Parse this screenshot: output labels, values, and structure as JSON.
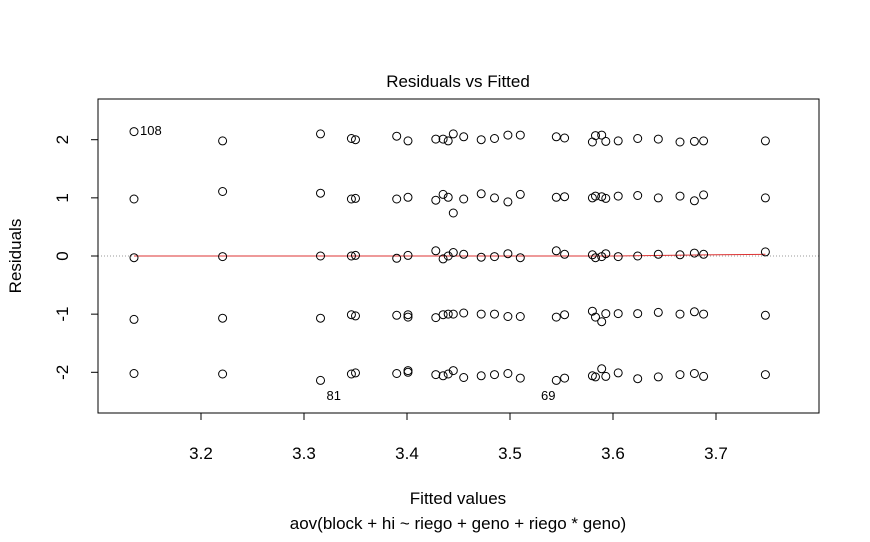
{
  "chart_data": {
    "type": "scatter",
    "title": "Residuals vs Fitted",
    "xlabel": "Fitted values",
    "subtitle": "aov(block + hi ~ riego + geno + riego * geno)",
    "ylabel": "Residuals",
    "xlim": [
      3.1,
      3.8
    ],
    "ylim": [
      -2.7,
      2.7
    ],
    "x_ticks": [
      3.2,
      3.3,
      3.4,
      3.5,
      3.6,
      3.7
    ],
    "x_tick_labels": [
      "3.2",
      "3.3",
      "3.4",
      "3.5",
      "3.6",
      "3.7"
    ],
    "y_ticks": [
      -2,
      -1,
      0,
      1,
      2
    ],
    "y_tick_labels": [
      "-2",
      "-1",
      "0",
      "1",
      "2"
    ],
    "zero_line": 0,
    "point_annotations": [
      {
        "label": "108",
        "x": 3.135,
        "y": 2.14,
        "side": "right"
      },
      {
        "label": "81",
        "x": 3.316,
        "y": -2.14,
        "side": "right"
      },
      {
        "label": "69",
        "x": 3.55,
        "y": -2.14,
        "side": "left"
      }
    ],
    "points": [
      [
        3.135,
        2.14
      ],
      [
        3.135,
        0.98
      ],
      [
        3.135,
        -0.03
      ],
      [
        3.135,
        -1.09
      ],
      [
        3.135,
        -2.02
      ],
      [
        3.221,
        1.98
      ],
      [
        3.221,
        1.11
      ],
      [
        3.221,
        -0.01
      ],
      [
        3.221,
        -1.07
      ],
      [
        3.221,
        -2.03
      ],
      [
        3.316,
        2.1
      ],
      [
        3.316,
        1.08
      ],
      [
        3.316,
        0.0
      ],
      [
        3.316,
        -1.07
      ],
      [
        3.316,
        -2.14
      ],
      [
        3.346,
        2.02
      ],
      [
        3.346,
        0.98
      ],
      [
        3.346,
        0.0
      ],
      [
        3.346,
        -1.01
      ],
      [
        3.346,
        -2.03
      ],
      [
        3.35,
        2.0
      ],
      [
        3.35,
        0.99
      ],
      [
        3.35,
        0.01
      ],
      [
        3.35,
        -1.03
      ],
      [
        3.35,
        -2.01
      ],
      [
        3.39,
        2.06
      ],
      [
        3.39,
        0.98
      ],
      [
        3.39,
        -0.04
      ],
      [
        3.39,
        -1.02
      ],
      [
        3.39,
        -2.02
      ],
      [
        3.401,
        1.98
      ],
      [
        3.401,
        1.01
      ],
      [
        3.401,
        0.01
      ],
      [
        3.401,
        -1.01
      ],
      [
        3.401,
        -2.0
      ],
      [
        3.401,
        -1.05
      ],
      [
        3.401,
        -1.97
      ],
      [
        3.428,
        2.01
      ],
      [
        3.428,
        0.96
      ],
      [
        3.428,
        0.09
      ],
      [
        3.428,
        -1.06
      ],
      [
        3.428,
        -2.04
      ],
      [
        3.435,
        2.01
      ],
      [
        3.435,
        1.06
      ],
      [
        3.435,
        -0.05
      ],
      [
        3.435,
        -1.01
      ],
      [
        3.435,
        -2.06
      ],
      [
        3.44,
        1.98
      ],
      [
        3.44,
        1.01
      ],
      [
        3.44,
        0.0
      ],
      [
        3.44,
        -1.0
      ],
      [
        3.44,
        -2.03
      ],
      [
        3.445,
        2.1
      ],
      [
        3.445,
        0.74
      ],
      [
        3.445,
        0.06
      ],
      [
        3.445,
        -1.0
      ],
      [
        3.445,
        -1.97
      ],
      [
        3.455,
        2.05
      ],
      [
        3.455,
        0.98
      ],
      [
        3.455,
        0.03
      ],
      [
        3.455,
        -0.98
      ],
      [
        3.455,
        -2.09
      ],
      [
        3.472,
        2.0
      ],
      [
        3.472,
        1.07
      ],
      [
        3.472,
        -0.02
      ],
      [
        3.472,
        -1.0
      ],
      [
        3.472,
        -2.06
      ],
      [
        3.485,
        2.02
      ],
      [
        3.485,
        1.0
      ],
      [
        3.485,
        -0.01
      ],
      [
        3.485,
        -1.0
      ],
      [
        3.485,
        -2.04
      ],
      [
        3.498,
        2.08
      ],
      [
        3.498,
        0.93
      ],
      [
        3.498,
        0.04
      ],
      [
        3.498,
        -1.04
      ],
      [
        3.498,
        -2.02
      ],
      [
        3.51,
        2.08
      ],
      [
        3.51,
        1.06
      ],
      [
        3.51,
        -0.03
      ],
      [
        3.51,
        -1.04
      ],
      [
        3.51,
        -2.1
      ],
      [
        3.545,
        2.05
      ],
      [
        3.545,
        1.01
      ],
      [
        3.545,
        0.09
      ],
      [
        3.545,
        -1.05
      ],
      [
        3.545,
        -2.14
      ],
      [
        3.553,
        2.03
      ],
      [
        3.553,
        1.02
      ],
      [
        3.553,
        0.03
      ],
      [
        3.553,
        -1.01
      ],
      [
        3.553,
        -2.1
      ],
      [
        3.58,
        1.96
      ],
      [
        3.58,
        1.0
      ],
      [
        3.58,
        0.02
      ],
      [
        3.58,
        -0.95
      ],
      [
        3.58,
        -2.06
      ],
      [
        3.583,
        2.07
      ],
      [
        3.583,
        1.03
      ],
      [
        3.583,
        -0.03
      ],
      [
        3.583,
        -1.05
      ],
      [
        3.583,
        -2.08
      ],
      [
        3.589,
        2.08
      ],
      [
        3.589,
        1.02
      ],
      [
        3.589,
        -0.01
      ],
      [
        3.589,
        -1.13
      ],
      [
        3.589,
        -1.94
      ],
      [
        3.593,
        1.97
      ],
      [
        3.593,
        0.99
      ],
      [
        3.593,
        0.04
      ],
      [
        3.593,
        -0.99
      ],
      [
        3.593,
        -2.07
      ],
      [
        3.605,
        1.98
      ],
      [
        3.605,
        1.03
      ],
      [
        3.605,
        -0.01
      ],
      [
        3.605,
        -0.99
      ],
      [
        3.605,
        -2.01
      ],
      [
        3.624,
        2.02
      ],
      [
        3.624,
        1.04
      ],
      [
        3.624,
        0.0
      ],
      [
        3.624,
        -0.99
      ],
      [
        3.624,
        -2.11
      ],
      [
        3.644,
        2.01
      ],
      [
        3.644,
        1.0
      ],
      [
        3.644,
        0.03
      ],
      [
        3.644,
        -0.97
      ],
      [
        3.644,
        -2.08
      ],
      [
        3.665,
        1.96
      ],
      [
        3.665,
        1.03
      ],
      [
        3.665,
        0.02
      ],
      [
        3.665,
        -1.0
      ],
      [
        3.665,
        -2.04
      ],
      [
        3.679,
        1.97
      ],
      [
        3.679,
        0.95
      ],
      [
        3.679,
        0.05
      ],
      [
        3.679,
        -0.96
      ],
      [
        3.679,
        -2.02
      ],
      [
        3.688,
        1.98
      ],
      [
        3.688,
        1.05
      ],
      [
        3.688,
        0.03
      ],
      [
        3.688,
        -1.0
      ],
      [
        3.688,
        -2.07
      ],
      [
        3.748,
        1.98
      ],
      [
        3.748,
        1.0
      ],
      [
        3.748,
        0.07
      ],
      [
        3.748,
        -1.02
      ],
      [
        3.748,
        -2.04
      ]
    ],
    "smoother": [
      [
        3.135,
        0.0
      ],
      [
        3.3,
        0.0
      ],
      [
        3.4,
        0.0
      ],
      [
        3.5,
        0.0
      ],
      [
        3.6,
        0.0
      ],
      [
        3.65,
        0.01
      ],
      [
        3.7,
        0.02
      ],
      [
        3.748,
        0.03
      ]
    ],
    "colors": {
      "points": "#000000",
      "smoother": "#dd3333",
      "zero_line": "#999999",
      "frame": "#000000"
    }
  }
}
